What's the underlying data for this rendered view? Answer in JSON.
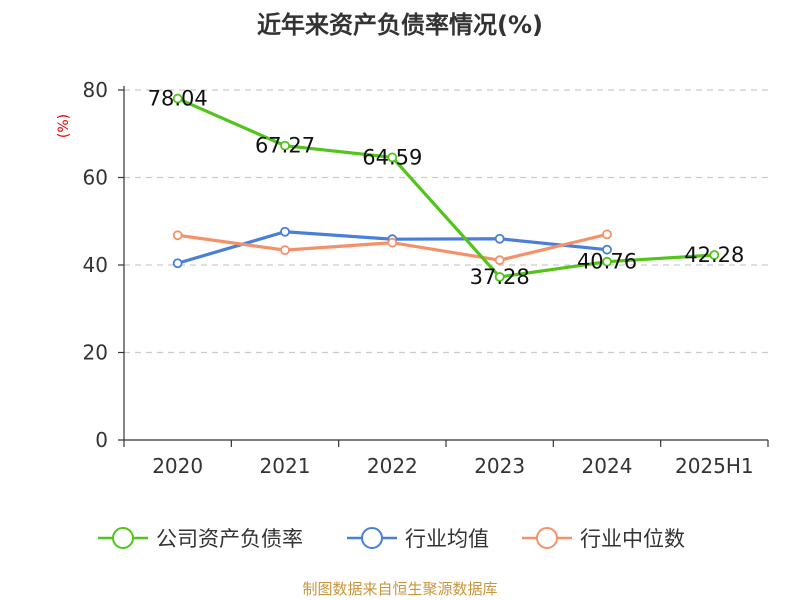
{
  "chart_data": {
    "type": "line",
    "title": "近年来资产负债率情况(%)",
    "ylabel": "(%)",
    "xlabel": "",
    "ylim": [
      0,
      80
    ],
    "yticks": [
      0,
      20,
      40,
      60,
      80
    ],
    "categories": [
      "2020",
      "2021",
      "2022",
      "2023",
      "2024",
      "2025H1"
    ],
    "grid": true,
    "legend_position": "bottom",
    "series": [
      {
        "name": "公司资产负债率",
        "color": "#52c41a",
        "values": [
          78.04,
          67.27,
          64.59,
          37.28,
          40.76,
          42.28
        ],
        "labels": [
          "78.04",
          "67.27",
          "64.59",
          "37.28",
          "40.76",
          "42.28"
        ]
      },
      {
        "name": "行业均值",
        "color": "#4a7fd9",
        "values": [
          40.4,
          47.6,
          45.9,
          46.0,
          43.5,
          null
        ]
      },
      {
        "name": "行业中位数",
        "color": "#f5916a",
        "values": [
          46.8,
          43.4,
          45.1,
          41.1,
          47.0,
          null
        ]
      }
    ]
  },
  "source_text": "制图数据来自恒生聚源数据库",
  "colors": {
    "source_text": "#c8963c",
    "ylabel": "#e00000",
    "grid": "#cccccc",
    "axis": "#333333"
  }
}
